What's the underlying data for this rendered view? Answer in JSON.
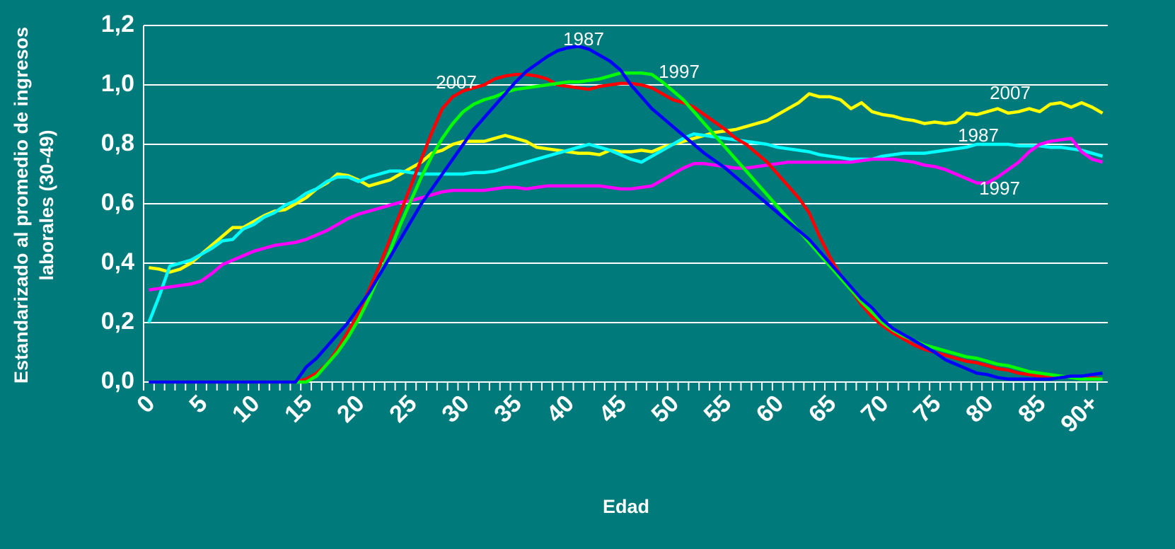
{
  "chart_data": {
    "type": "line",
    "ylabel": [
      "Estandarizado al promedio de ingresos",
      "laborales (30-49)"
    ],
    "xlabel": "Edad",
    "categories": [
      "0",
      null,
      null,
      null,
      null,
      "5",
      null,
      null,
      null,
      null,
      "10",
      null,
      null,
      null,
      null,
      "15",
      null,
      null,
      null,
      null,
      "20",
      null,
      null,
      null,
      null,
      "25",
      null,
      null,
      null,
      null,
      "30",
      null,
      null,
      null,
      null,
      "35",
      null,
      null,
      null,
      null,
      "40",
      null,
      null,
      null,
      null,
      "45",
      null,
      null,
      null,
      null,
      "50",
      null,
      null,
      null,
      null,
      "55",
      null,
      null,
      null,
      null,
      "60",
      null,
      null,
      null,
      null,
      "65",
      null,
      null,
      null,
      null,
      "70",
      null,
      null,
      null,
      null,
      "75",
      null,
      null,
      null,
      null,
      "80",
      null,
      null,
      null,
      null,
      "85",
      null,
      null,
      null,
      null,
      "90+",
      null
    ],
    "ylim": [
      0,
      1.2
    ],
    "yticks": [
      {
        "value": 0,
        "label": "0,0"
      },
      {
        "value": 0.2,
        "label": "0,2"
      },
      {
        "value": 0.4,
        "label": "0,4"
      },
      {
        "value": 0.6,
        "label": "0,6"
      },
      {
        "value": 0.8,
        "label": "0,8"
      },
      {
        "value": 1.0,
        "label": "1,0"
      },
      {
        "value": 1.2,
        "label": "1,2"
      }
    ],
    "grid": true,
    "series": [
      {
        "color": "#ffff00",
        "values": [
          0.385,
          0.38,
          0.37,
          0.38,
          0.4,
          0.43,
          0.46,
          0.49,
          0.52,
          0.52,
          0.54,
          0.56,
          0.575,
          0.58,
          0.6,
          0.62,
          0.65,
          0.67,
          0.7,
          0.695,
          0.68,
          0.66,
          0.67,
          0.68,
          0.7,
          0.72,
          0.74,
          0.77,
          0.78,
          0.8,
          0.81,
          0.81,
          0.81,
          0.82,
          0.83,
          0.82,
          0.81,
          0.79,
          0.785,
          0.78,
          0.775,
          0.77,
          0.77,
          0.765,
          0.78,
          0.775,
          0.775,
          0.78,
          0.775,
          0.79,
          0.8,
          0.81,
          0.82,
          0.83,
          0.84,
          0.845,
          0.85,
          0.86,
          0.87,
          0.88,
          0.9,
          0.92,
          0.94,
          0.97,
          0.96,
          0.96,
          0.95,
          0.92,
          0.94,
          0.91,
          0.9,
          0.895,
          0.885,
          0.88,
          0.87,
          0.875,
          0.87,
          0.875,
          0.905,
          0.9,
          0.91,
          0.92,
          0.905,
          0.91,
          0.92,
          0.91,
          0.935,
          0.94,
          0.925,
          0.94,
          0.925,
          0.905
        ]
      },
      {
        "color": "#00ffff",
        "values": [
          0.2,
          0.29,
          0.39,
          0.4,
          0.41,
          0.43,
          0.45,
          0.475,
          0.48,
          0.515,
          0.53,
          0.555,
          0.57,
          0.595,
          0.61,
          0.635,
          0.65,
          0.675,
          0.69,
          0.69,
          0.675,
          0.69,
          0.7,
          0.71,
          0.71,
          0.705,
          0.7,
          0.7,
          0.7,
          0.7,
          0.7,
          0.705,
          0.705,
          0.71,
          0.72,
          0.73,
          0.74,
          0.75,
          0.76,
          0.77,
          0.78,
          0.79,
          0.8,
          0.79,
          0.78,
          0.765,
          0.75,
          0.74,
          0.76,
          0.78,
          0.8,
          0.82,
          0.835,
          0.83,
          0.825,
          0.82,
          0.815,
          0.81,
          0.805,
          0.8,
          0.79,
          0.785,
          0.78,
          0.775,
          0.765,
          0.76,
          0.755,
          0.75,
          0.75,
          0.75,
          0.76,
          0.765,
          0.77,
          0.77,
          0.77,
          0.775,
          0.78,
          0.785,
          0.79,
          0.8,
          0.8,
          0.8,
          0.8,
          0.795,
          0.795,
          0.795,
          0.79,
          0.79,
          0.785,
          0.78,
          0.77,
          0.76
        ]
      },
      {
        "color": "#ff00ff",
        "values": [
          0.31,
          0.315,
          0.32,
          0.325,
          0.33,
          0.34,
          0.365,
          0.395,
          0.41,
          0.425,
          0.44,
          0.45,
          0.46,
          0.465,
          0.47,
          0.48,
          0.495,
          0.51,
          0.53,
          0.55,
          0.565,
          0.575,
          0.585,
          0.595,
          0.605,
          0.61,
          0.62,
          0.63,
          0.64,
          0.645,
          0.645,
          0.645,
          0.645,
          0.65,
          0.655,
          0.655,
          0.65,
          0.655,
          0.66,
          0.66,
          0.66,
          0.66,
          0.66,
          0.66,
          0.655,
          0.65,
          0.65,
          0.655,
          0.66,
          0.68,
          0.7,
          0.72,
          0.735,
          0.735,
          0.73,
          0.725,
          0.72,
          0.72,
          0.725,
          0.73,
          0.735,
          0.74,
          0.74,
          0.74,
          0.74,
          0.74,
          0.74,
          0.74,
          0.745,
          0.75,
          0.75,
          0.75,
          0.745,
          0.74,
          0.73,
          0.725,
          0.715,
          0.7,
          0.685,
          0.67,
          0.67,
          0.69,
          0.715,
          0.74,
          0.775,
          0.8,
          0.81,
          0.815,
          0.82,
          0.775,
          0.75,
          0.74
        ]
      },
      {
        "color": "#ff0000",
        "values": [
          0,
          0,
          0,
          0,
          0,
          0,
          0,
          0,
          0,
          0,
          0,
          0,
          0,
          0,
          0,
          0.01,
          0.03,
          0.06,
          0.11,
          0.17,
          0.23,
          0.31,
          0.39,
          0.48,
          0.57,
          0.66,
          0.75,
          0.84,
          0.92,
          0.96,
          0.98,
          0.99,
          1.0,
          1.02,
          1.03,
          1.035,
          1.035,
          1.03,
          1.02,
          1.0,
          0.995,
          0.99,
          0.985,
          0.995,
          1.0,
          1.005,
          1.005,
          1.0,
          0.99,
          0.97,
          0.95,
          0.94,
          0.925,
          0.9,
          0.875,
          0.85,
          0.82,
          0.8,
          0.77,
          0.74,
          0.7,
          0.66,
          0.62,
          0.57,
          0.49,
          0.42,
          0.36,
          0.31,
          0.26,
          0.22,
          0.19,
          0.165,
          0.145,
          0.125,
          0.11,
          0.1,
          0.09,
          0.08,
          0.07,
          0.065,
          0.055,
          0.045,
          0.04,
          0.03,
          0.025,
          0.02,
          0.015,
          0.015,
          0.02,
          0.02,
          0.015,
          0.01
        ]
      },
      {
        "color": "#00ff00",
        "values": [
          0,
          0,
          0,
          0,
          0,
          0,
          0,
          0,
          0,
          0,
          0,
          0,
          0,
          0,
          0,
          0,
          0.02,
          0.06,
          0.1,
          0.15,
          0.21,
          0.28,
          0.36,
          0.44,
          0.53,
          0.61,
          0.69,
          0.76,
          0.82,
          0.87,
          0.91,
          0.935,
          0.95,
          0.96,
          0.975,
          0.985,
          0.99,
          0.995,
          1.0,
          1.005,
          1.01,
          1.01,
          1.015,
          1.02,
          1.03,
          1.04,
          1.04,
          1.04,
          1.035,
          1.01,
          0.98,
          0.95,
          0.91,
          0.87,
          0.83,
          0.79,
          0.75,
          0.71,
          0.67,
          0.63,
          0.59,
          0.55,
          0.51,
          0.47,
          0.43,
          0.39,
          0.35,
          0.31,
          0.27,
          0.235,
          0.2,
          0.175,
          0.155,
          0.14,
          0.125,
          0.115,
          0.105,
          0.095,
          0.085,
          0.08,
          0.07,
          0.06,
          0.055,
          0.045,
          0.035,
          0.03,
          0.025,
          0.02,
          0.015,
          0.01,
          0.01,
          0.01
        ]
      },
      {
        "color": "#0000ff",
        "values": [
          0,
          0,
          0,
          0,
          0,
          0,
          0,
          0,
          0,
          0,
          0,
          0,
          0,
          0,
          0,
          0.05,
          0.08,
          0.12,
          0.16,
          0.2,
          0.25,
          0.3,
          0.36,
          0.42,
          0.48,
          0.54,
          0.6,
          0.65,
          0.7,
          0.75,
          0.8,
          0.85,
          0.89,
          0.93,
          0.97,
          1.01,
          1.045,
          1.07,
          1.095,
          1.115,
          1.125,
          1.13,
          1.12,
          1.1,
          1.08,
          1.05,
          1.0,
          0.96,
          0.92,
          0.89,
          0.86,
          0.83,
          0.8,
          0.77,
          0.745,
          0.72,
          0.69,
          0.66,
          0.63,
          0.6,
          0.57,
          0.54,
          0.51,
          0.48,
          0.44,
          0.4,
          0.36,
          0.32,
          0.28,
          0.25,
          0.21,
          0.18,
          0.16,
          0.14,
          0.12,
          0.1,
          0.075,
          0.06,
          0.045,
          0.03,
          0.025,
          0.015,
          0.01,
          0.01,
          0.01,
          0.01,
          0.01,
          0.015,
          0.02,
          0.02,
          0.025,
          0.03
        ]
      }
    ],
    "annotations": [
      "2007",
      "1987",
      "1997",
      "2007",
      "1987",
      "1997"
    ]
  }
}
